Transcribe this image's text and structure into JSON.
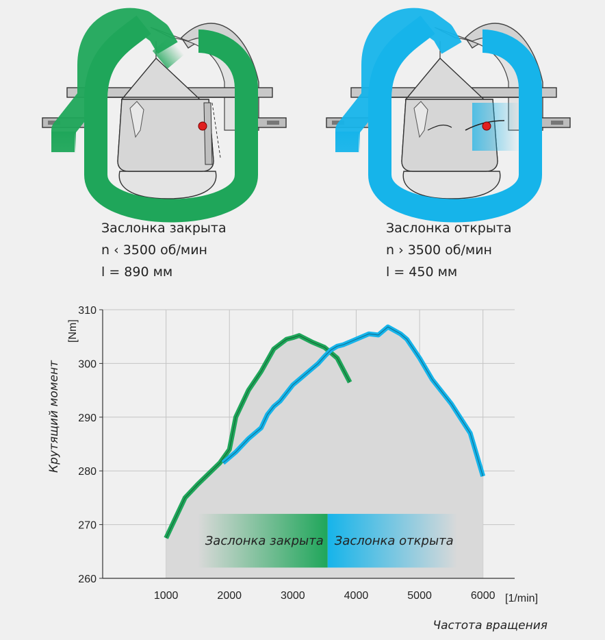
{
  "colors": {
    "closed": "#1fa65a",
    "open": "#16b4ea",
    "background": "#f0f0f0",
    "area": "#d9d9d9",
    "housing": "#d6d6d6"
  },
  "illustrations": [
    {
      "state": "closed",
      "icon": "intake-manifold-long-path-icon",
      "caption": [
        "Заслонка закрыта",
        "n ‹ 3500 об/мин",
        "l = 890 мм"
      ]
    },
    {
      "state": "open",
      "icon": "intake-manifold-short-path-icon",
      "caption": [
        "Заслонка открыта",
        "n › 3500 об/мин",
        "l = 450 мм"
      ]
    }
  ],
  "chart_data": {
    "type": "line",
    "ylabel": "Крутящий момент",
    "yunit": "[Nm]",
    "xlabel": "Частота вращения",
    "xunit": "[1/min]",
    "xlim": [
      0,
      6500
    ],
    "ylim": [
      260,
      310
    ],
    "xticks": [
      1000,
      2000,
      3000,
      4000,
      5000,
      6000
    ],
    "yticks": [
      260,
      270,
      280,
      290,
      300,
      310
    ],
    "grid": true,
    "envelope": {
      "x": [
        1000,
        1300,
        1500,
        1850,
        2000,
        2100,
        2300,
        2500,
        2700,
        2900,
        3000,
        3100,
        3300,
        3550,
        3600,
        3700,
        4000,
        4200,
        4350,
        4500,
        4700,
        4800,
        5000,
        5200,
        5500,
        5800,
        6000
      ],
      "y": [
        267.5,
        275,
        277.5,
        281.5,
        284,
        290,
        295,
        298.5,
        302.7,
        304.5,
        304.8,
        305.2,
        304,
        302.2,
        302.5,
        303.2,
        304.5,
        305.5,
        305.3,
        306.8,
        305.5,
        304.5,
        301,
        297,
        292.5,
        287,
        279
      ]
    },
    "bands": [
      {
        "label": "Заслонка закрыта",
        "x_range": [
          1500,
          3550
        ],
        "y_range": [
          262,
          272
        ],
        "color": "#1fa65a"
      },
      {
        "label": "Заслонка открыта",
        "x_range": [
          3550,
          5600
        ],
        "y_range": [
          262,
          272
        ],
        "color": "#16b4ea"
      }
    ],
    "series": [
      {
        "key": "closed",
        "color": "#1fa65a",
        "x": [
          1000,
          1300,
          1500,
          1850,
          2000,
          2100,
          2300,
          2500,
          2700,
          2900,
          3000,
          3100,
          3300,
          3500,
          3700,
          3900
        ],
        "y": [
          267.5,
          275,
          277.5,
          281.5,
          284,
          290,
          295,
          298.5,
          302.7,
          304.5,
          304.8,
          305.2,
          304,
          303,
          301,
          296.5
        ]
      },
      {
        "key": "open",
        "color": "#16b4ea",
        "x": [
          1900,
          2100,
          2300,
          2500,
          2600,
          2700,
          2800,
          3000,
          3100,
          3200,
          3300,
          3400,
          3500,
          3600,
          3700,
          3800,
          4000,
          4200,
          4350,
          4500,
          4700,
          4800,
          5000,
          5200,
          5500,
          5800,
          6000
        ],
        "y": [
          281.5,
          283.5,
          286,
          288,
          290.5,
          292,
          293,
          296,
          297,
          298,
          299,
          300,
          301.3,
          302.5,
          303.2,
          303.5,
          304.5,
          305.5,
          305.3,
          306.8,
          305.5,
          304.5,
          301,
          297,
          292.5,
          287,
          279
        ]
      }
    ]
  }
}
